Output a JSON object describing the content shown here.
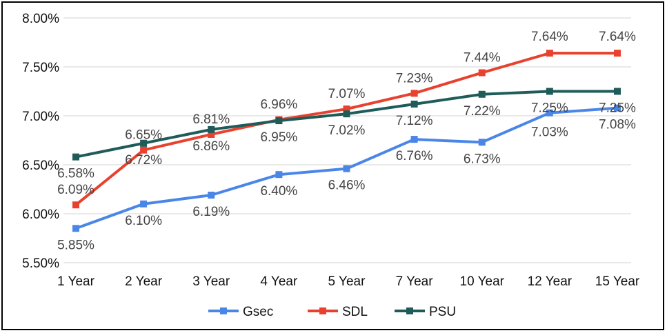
{
  "chart_data": {
    "type": "line",
    "categories": [
      "1 Year",
      "2 Year",
      "3 Year",
      "4 Year",
      "5 Year",
      "7 Year",
      "10 Year",
      "12 Year",
      "15 Year"
    ],
    "ylim": [
      5.5,
      8.0
    ],
    "yticks": [
      "5.50%",
      "6.00%",
      "6.50%",
      "7.00%",
      "7.50%",
      "8.00%"
    ],
    "grid": true,
    "legend": "bottom",
    "series": [
      {
        "name": "Gsec",
        "color": "#4a86e8",
        "values": [
          5.85,
          6.1,
          6.19,
          6.4,
          6.46,
          6.76,
          6.73,
          7.03,
          7.08
        ],
        "labels": [
          "5.85%",
          "6.10%",
          "6.19%",
          "6.40%",
          "6.46%",
          "6.76%",
          "6.73%",
          "7.03%",
          "7.08%"
        ]
      },
      {
        "name": "SDL",
        "color": "#e8422f",
        "values": [
          6.09,
          6.65,
          6.81,
          6.96,
          7.07,
          7.23,
          7.44,
          7.64,
          7.64
        ],
        "labels": [
          "6.09%",
          "6.65%",
          "6.81%",
          "6.96%",
          "7.07%",
          "7.23%",
          "7.44%",
          "7.64%",
          "7.64%"
        ]
      },
      {
        "name": "PSU",
        "color": "#1f5c59",
        "values": [
          6.58,
          6.72,
          6.86,
          6.95,
          7.02,
          7.12,
          7.22,
          7.25,
          7.25
        ],
        "labels": [
          "6.58%",
          "6.72%",
          "6.86%",
          "6.95%",
          "7.02%",
          "7.12%",
          "7.22%",
          "7.25%",
          "7.25%"
        ]
      }
    ]
  }
}
